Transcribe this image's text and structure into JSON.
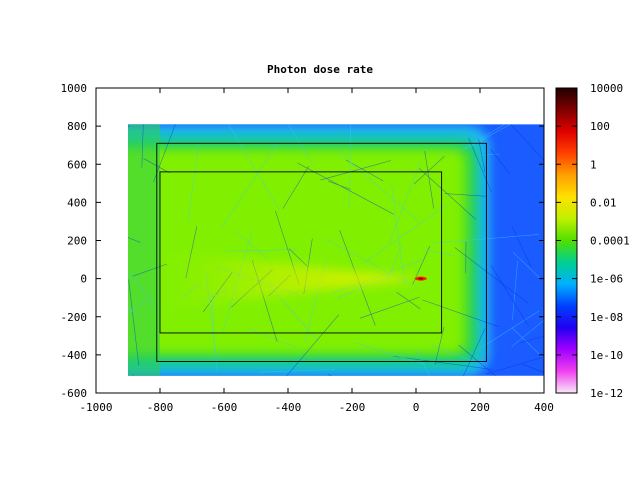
{
  "chart_data": {
    "type": "heatmap",
    "title": "Photon dose rate",
    "xlabel": "",
    "ylabel": "",
    "xlim": [
      -1000,
      400
    ],
    "ylim": [
      -600,
      1000
    ],
    "x_ticks": [
      "-1000",
      "-800",
      "-600",
      "-400",
      "-200",
      "0",
      "200",
      "400"
    ],
    "x_tick_values": [
      -1000,
      -800,
      -600,
      -400,
      -200,
      0,
      200,
      400
    ],
    "y_ticks": [
      "1000",
      "800",
      "600",
      "400",
      "200",
      "0",
      "-200",
      "-400",
      "-600"
    ],
    "y_tick_values": [
      1000,
      800,
      600,
      400,
      200,
      0,
      -200,
      -400,
      -600
    ],
    "colorbar": {
      "scale": "log",
      "ticks": [
        "10000",
        "100",
        "1",
        "0.01",
        "0.0001",
        "1e-06",
        "1e-08",
        "1e-10",
        "1e-12"
      ],
      "tick_exponents": [
        4,
        2,
        0,
        -2,
        -4,
        -6,
        -8,
        -10,
        -12
      ],
      "colors": [
        "#f8e8f8",
        "#f040f0",
        "#a000ff",
        "#2000f0",
        "#0040ff",
        "#00b0ff",
        "#00d090",
        "#50e000",
        "#c0f000",
        "#ffe000",
        "#ffa000",
        "#ff4000",
        "#e00000",
        "#800000",
        "#200000"
      ]
    },
    "data_extent": {
      "x": [
        -900,
        400
      ],
      "y": [
        -510,
        810
      ]
    },
    "regions": [
      {
        "name": "outer-boundary",
        "x": [
          -810,
          220
        ],
        "y": [
          -435,
          710
        ]
      },
      {
        "name": "inner-boundary",
        "x": [
          -800,
          80
        ],
        "y": [
          -285,
          560
        ]
      }
    ],
    "source": {
      "x": 15,
      "y": 0
    },
    "grid": false,
    "legend": "none"
  }
}
